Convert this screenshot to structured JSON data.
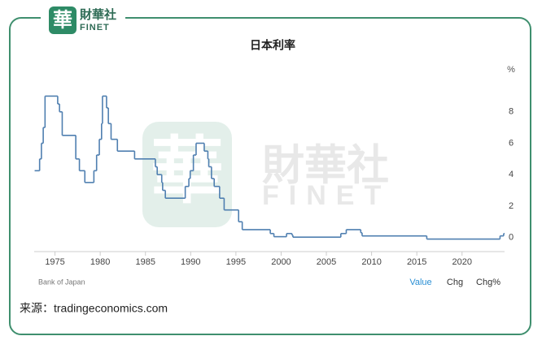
{
  "header": {
    "logo_char": "華",
    "logo_cn": "財華社",
    "logo_en": "FINET"
  },
  "chart_data": {
    "type": "step-line",
    "title": "日本利率",
    "y_unit": "%",
    "x": [
      1972.75,
      1973.3,
      1973.5,
      1973.7,
      1973.9,
      1975.3,
      1975.5,
      1975.8,
      1977.3,
      1977.7,
      1978.3,
      1979.3,
      1979.6,
      1979.9,
      1980.15,
      1980.25,
      1980.7,
      1980.9,
      1981.2,
      1981.9,
      1983.8,
      1986.1,
      1986.3,
      1986.8,
      1986.9,
      1987.2,
      1989.4,
      1989.8,
      1989.95,
      1990.3,
      1990.6,
      1991.5,
      1991.9,
      1992.0,
      1992.3,
      1992.6,
      1993.2,
      1993.7,
      1995.3,
      1995.7,
      1998.8,
      1999.2,
      2000.6,
      2001.2,
      2001.3,
      2006.6,
      2007.2,
      2008.8,
      2008.95,
      2016.1,
      2024.2,
      2024.6
    ],
    "series": [
      {
        "name": "Value",
        "color": "#4f7fb0",
        "values": [
          4.25,
          5,
          6,
          7,
          9,
          8.5,
          8,
          6.5,
          5,
          4.25,
          3.5,
          4.25,
          5.25,
          6.25,
          7.25,
          9,
          8.25,
          7.25,
          6.25,
          5.5,
          5,
          4.5,
          4,
          3.5,
          3,
          2.5,
          3.25,
          3.75,
          4.25,
          5.25,
          6,
          5.5,
          5,
          4.5,
          3.75,
          3.25,
          2.5,
          1.75,
          1,
          0.5,
          0.25,
          0.05,
          0.25,
          0.15,
          0.02,
          0.25,
          0.5,
          0.3,
          0.1,
          -0.1,
          0.1,
          0.25
        ]
      }
    ],
    "xlim": [
      1972.7,
      2024.7
    ],
    "ylim": [
      -0.9,
      9.9
    ],
    "xticks": [
      1975,
      1980,
      1985,
      1990,
      1995,
      2000,
      2005,
      2010,
      2015,
      2020
    ],
    "yticks": [
      0,
      2,
      4,
      6,
      8
    ],
    "grid": false
  },
  "footer": {
    "source_note": "Bank of Japan",
    "tabs": [
      "Value",
      "Chg",
      "Chg%"
    ],
    "credit": "来源：tradingeconomics.com"
  }
}
